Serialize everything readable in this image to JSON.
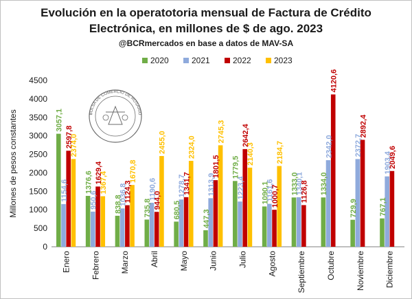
{
  "chart_data": {
    "type": "bar",
    "title": "Evolución en la operatotoria mensual de Factura de Crédito",
    "title_line2": "Electrónica, en millones de $ de ago. 2023",
    "subtitle": "@BCRmercados en base a datos de MAV-SA",
    "ylabel": "Millones de pesos constantes",
    "ylim": [
      0,
      4500
    ],
    "yticks": [
      0,
      500,
      1000,
      1500,
      2000,
      2500,
      3000,
      3500,
      4000,
      4500
    ],
    "legend_position": "top",
    "grid": false,
    "categories": [
      "Enero",
      "Febrero",
      "Marzo",
      "Abril",
      "Mayo",
      "Junio",
      "Julio",
      "Agosto",
      "Septiembre",
      "Octubre",
      "Noviembre",
      "Diciembre"
    ],
    "series": [
      {
        "name": "2020",
        "color": "#70ad47",
        "labels": [
          "3057,1",
          "1376,6",
          "838,8",
          "735,8",
          "680,5",
          "447,3",
          "1779,5",
          "1090,1",
          "1333,0",
          "1334,0",
          "729,9",
          "767,1"
        ],
        "values": [
          3057.1,
          1376.6,
          838.8,
          735.8,
          680.5,
          447.3,
          1779.5,
          1090.1,
          1333.0,
          1334.0,
          729.9,
          767.1
        ]
      },
      {
        "name": "2021",
        "color": "#8faadc",
        "labels": [
          "1154,6",
          "950,6",
          "1036,8",
          "1190,6",
          "1278,7",
          "1313,9",
          "1223,4",
          "1161,6",
          "1340,1",
          "2342,0",
          "2372,7",
          "1903,4"
        ],
        "values": [
          1154.6,
          950.6,
          1036.8,
          1190.6,
          1278.7,
          1313.9,
          1223.4,
          1161.6,
          1340.1,
          2342.0,
          2372.7,
          1903.4
        ]
      },
      {
        "name": "2022",
        "color": "#c00000",
        "labels": [
          "2597,8",
          "1629,4",
          "1124,3",
          "944,0",
          "1341,7",
          "1801,5",
          "2642,4",
          "1000,7",
          "1126,8",
          "4120,6",
          "2892,4",
          "2049,6"
        ],
        "values": [
          2597.8,
          1629.4,
          1124.3,
          944.0,
          1341.7,
          1801.5,
          2642.4,
          1000.7,
          1126.8,
          4120.6,
          2892.4,
          2049.6
        ]
      },
      {
        "name": "2023",
        "color": "#ffc000",
        "labels": [
          "2374,0",
          "1367,4",
          "1670,8",
          "2455,0",
          "2324,0",
          "2745,3",
          "2140,3",
          "2184,7",
          "",
          "",
          "",
          ""
        ],
        "values": [
          2374.0,
          1367.4,
          1670.8,
          2455.0,
          2324.0,
          2745.3,
          2140.3,
          2184.7,
          null,
          null,
          null,
          null
        ]
      }
    ]
  },
  "seal": {
    "text": "BOLSA DE COMERCIO DE ROSARIO",
    "icon": "bcr-seal-icon"
  }
}
